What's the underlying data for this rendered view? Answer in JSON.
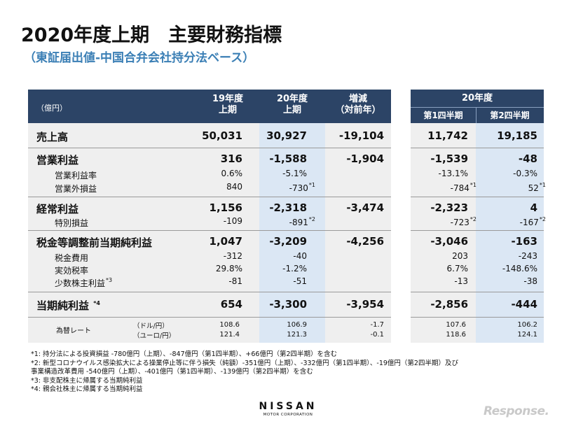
{
  "title": "2020年度上期　主要財務指標",
  "subtitle": "（東証届出値-中国合弁会社持分法ベース）",
  "header": {
    "unit": "（億円）",
    "fy19": [
      "19年度",
      "上期"
    ],
    "fy20": [
      "20年度",
      "上期"
    ],
    "change": [
      "増減",
      "（対前年）"
    ],
    "fy20_right": "20年度",
    "q1": "第1四半期",
    "q2": "第2四半期"
  },
  "rows": {
    "sales": {
      "label": "売上高",
      "fy19": "50,031",
      "fy20": "30,927",
      "chg": "-19,104",
      "q1": "11,742",
      "q2": "19,185"
    },
    "op": {
      "label": "営業利益",
      "fy19": "316",
      "fy20": "-1,588",
      "chg": "-1,904",
      "q1": "-1,539",
      "q2": "-48"
    },
    "op_margin": {
      "label": "営業利益率",
      "fy19": "0.6%",
      "fy20": "-5.1%",
      "q1": "-13.1%",
      "q2": "-0.3%"
    },
    "nonop": {
      "label": "営業外損益",
      "fy19": "840",
      "fy20": "-730",
      "fy20_note": "*1",
      "q1": "-784",
      "q1_note": "*1",
      "q2": "52",
      "q2_note": "*1"
    },
    "ord": {
      "label": "経常利益",
      "fy19": "1,156",
      "fy20": "-2,318",
      "chg": "-3,474",
      "q1": "-2,323",
      "q2": "4"
    },
    "extra": {
      "label": "特別損益",
      "fy19": "-109",
      "fy20": "-891",
      "fy20_note": "*2",
      "q1": "-723",
      "q1_note": "*2",
      "q2": "-167",
      "q2_note": "*2"
    },
    "pretax": {
      "label": "税金等調整前当期純利益",
      "fy19": "1,047",
      "fy20": "-3,209",
      "chg": "-4,256",
      "q1": "-3,046",
      "q2": "-163"
    },
    "tax": {
      "label": "税金費用",
      "fy19": "-312",
      "fy20": "-40",
      "q1": "203",
      "q2": "-243"
    },
    "taxrate": {
      "label": "実効税率",
      "fy19": "29.8%",
      "fy20": "-1.2%",
      "q1": "6.7%",
      "q2": "-148.6%"
    },
    "minority": {
      "label": "少数株主利益",
      "label_note": "*3",
      "fy19": "-81",
      "fy20": "-51",
      "q1": "-13",
      "q2": "-38"
    },
    "net": {
      "label": "当期純利益",
      "label_note": "*4",
      "fy19": "654",
      "fy20": "-3,300",
      "chg": "-3,954",
      "q1": "-2,856",
      "q2": "-444"
    }
  },
  "fx": {
    "label": "為替レート",
    "usd": {
      "unit": "（ドル/円）",
      "fy19": "108.6",
      "fy20": "106.9",
      "chg": "-1.7",
      "q1": "107.6",
      "q2": "106.2"
    },
    "eur": {
      "unit": "（ユーロ/円）",
      "fy19": "121.4",
      "fy20": "121.3",
      "chg": "-0.1",
      "q1": "118.6",
      "q2": "124.1"
    }
  },
  "notes": [
    "*1: 持分法による投資損益 -780億円（上期）、-847億円（第1四半期）、+66億円（第2四半期）を含む",
    "*2: 新型コロナウイルス感染拡大による操業停止等に伴う損失（純額）-351億円（上期）、-332億円（第1四半期）、-19億円（第2四半期）及び",
    "事業構造改革費用 -540億円（上期）、-401億円（第1四半期）、-139億円（第2四半期）を含む",
    "*3: 非支配株主に帰属する当期純利益",
    "*4: 親会社株主に帰属する当期純利益"
  ],
  "logo": {
    "name": "NISSAN",
    "sub": "MOTOR CORPORATION"
  },
  "watermark": "Response.",
  "colors": {
    "header": "#2c4466",
    "highlight": "#dbe7f4",
    "body": "#efefef",
    "subtitle": "#3b7fb5"
  }
}
